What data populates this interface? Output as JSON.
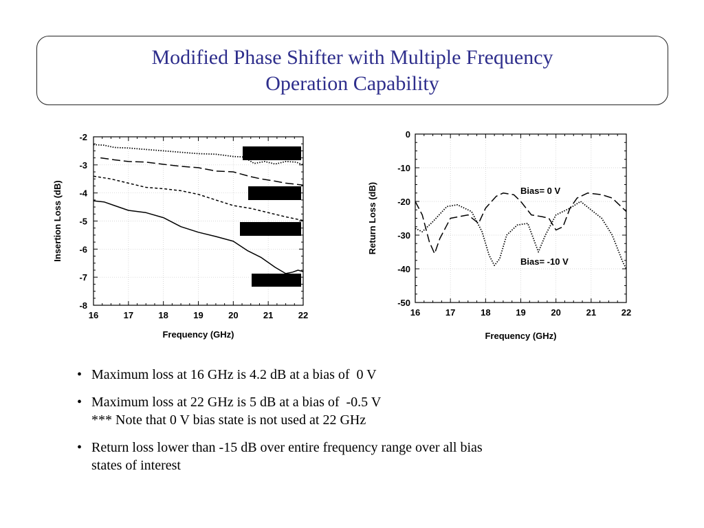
{
  "title": "Modified Phase Shifter with Multiple Frequency\nOperation Capability",
  "chart_data": [
    {
      "type": "line",
      "ylabel": "Insertion Loss (dB)",
      "xlabel": "Frequency (GHz)",
      "xlim": [
        16,
        22
      ],
      "ylim": [
        -8,
        -2
      ],
      "xticks": [
        "16",
        "17",
        "18",
        "19",
        "20",
        "21",
        "22"
      ],
      "yticks": [
        "-2",
        "-3",
        "-4",
        "-5",
        "-6",
        "-7",
        "-8"
      ],
      "grid": true,
      "series": [
        {
          "style": "dotted",
          "x": [
            16,
            16.3,
            16.6,
            17,
            17.5,
            18,
            18.5,
            19,
            19.5,
            20,
            20.3,
            20.6,
            20.9,
            21.2,
            21.5,
            21.8,
            22
          ],
          "y": [
            -2.28,
            -2.3,
            -2.38,
            -2.4,
            -2.45,
            -2.5,
            -2.55,
            -2.6,
            -2.62,
            -2.7,
            -2.72,
            -2.95,
            -2.88,
            -2.97,
            -2.88,
            -2.9,
            -3.0
          ]
        },
        {
          "style": "long-dash",
          "x": [
            16.2,
            16.6,
            17,
            17.5,
            18,
            18.5,
            19,
            19.5,
            20,
            20.5,
            20.8,
            21.2,
            21.5,
            22
          ],
          "y": [
            -2.75,
            -2.82,
            -2.88,
            -2.9,
            -2.98,
            -3.05,
            -3.1,
            -3.22,
            -3.25,
            -3.42,
            -3.5,
            -3.58,
            -3.65,
            -3.72
          ]
        },
        {
          "style": "dashed",
          "x": [
            16,
            16.5,
            17,
            17.5,
            18,
            18.5,
            19,
            19.5,
            20,
            20.5,
            21,
            21.5,
            22
          ],
          "y": [
            -3.4,
            -3.5,
            -3.65,
            -3.8,
            -3.85,
            -3.92,
            -4.05,
            -4.25,
            -4.45,
            -4.55,
            -4.7,
            -4.85,
            -4.98
          ]
        },
        {
          "style": "solid",
          "x": [
            16,
            16.3,
            16.6,
            17,
            17.5,
            18,
            18.5,
            19,
            19.5,
            20,
            20.4,
            20.8,
            21.2,
            21.5,
            21.7,
            21.85,
            22
          ],
          "y": [
            -4.28,
            -4.32,
            -4.45,
            -4.62,
            -4.7,
            -4.88,
            -5.2,
            -5.4,
            -5.55,
            -5.72,
            -6.05,
            -6.3,
            -6.65,
            -6.87,
            -6.82,
            -6.75,
            -6.8
          ]
        }
      ]
    },
    {
      "type": "line",
      "ylabel": "Return Loss (dB)",
      "xlabel": "Frequency (GHz)",
      "xlim": [
        16,
        22
      ],
      "ylim": [
        -50,
        0
      ],
      "xticks": [
        "16",
        "17",
        "18",
        "19",
        "20",
        "21",
        "22"
      ],
      "yticks": [
        "0",
        "-10",
        "-20",
        "-30",
        "-40",
        "-50"
      ],
      "grid": true,
      "annotations": [
        "Bias= 0 V",
        "Bias= -10 V"
      ],
      "series": [
        {
          "name": "Bias= 0 V",
          "style": "long-dash",
          "x": [
            16,
            16.2,
            16.4,
            16.55,
            16.7,
            17,
            17.5,
            17.8,
            18,
            18.3,
            18.5,
            18.8,
            19,
            19.3,
            19.6,
            19.8,
            20,
            20.2,
            20.4,
            20.6,
            20.9,
            21.3,
            21.6,
            22
          ],
          "y": [
            -20,
            -24,
            -32,
            -35.5,
            -31,
            -25,
            -24,
            -26.5,
            -22,
            -18.5,
            -17.5,
            -18,
            -20,
            -24,
            -24.5,
            -25,
            -28.5,
            -27.5,
            -22,
            -19,
            -17.5,
            -18,
            -19,
            -23
          ]
        },
        {
          "name": "Bias= -10 V",
          "style": "dotted",
          "x": [
            16,
            16.2,
            16.5,
            16.9,
            17.2,
            17.6,
            17.9,
            18.1,
            18.25,
            18.4,
            18.6,
            18.9,
            19.2,
            19.5,
            19.7,
            20,
            20.4,
            20.7,
            21,
            21.3,
            21.6,
            21.9,
            22
          ],
          "y": [
            -28,
            -29,
            -26,
            -21.5,
            -21,
            -23,
            -29,
            -36,
            -39,
            -37,
            -30,
            -27,
            -26.5,
            -35,
            -30,
            -24,
            -22,
            -20,
            -22.5,
            -25,
            -30,
            -38,
            -40
          ]
        }
      ]
    }
  ],
  "bullets": [
    [
      "Maximum loss at 16 GHz is 4.2 dB at a bias of  0 V"
    ],
    [
      "Maximum loss at 22 GHz is 5 dB at a bias of  -0.5 V",
      "*** Note that 0 V bias state is not used at 22 GHz"
    ],
    [
      "Return loss lower than -15 dB over entire frequency range over all bias",
      "states of interest"
    ]
  ]
}
